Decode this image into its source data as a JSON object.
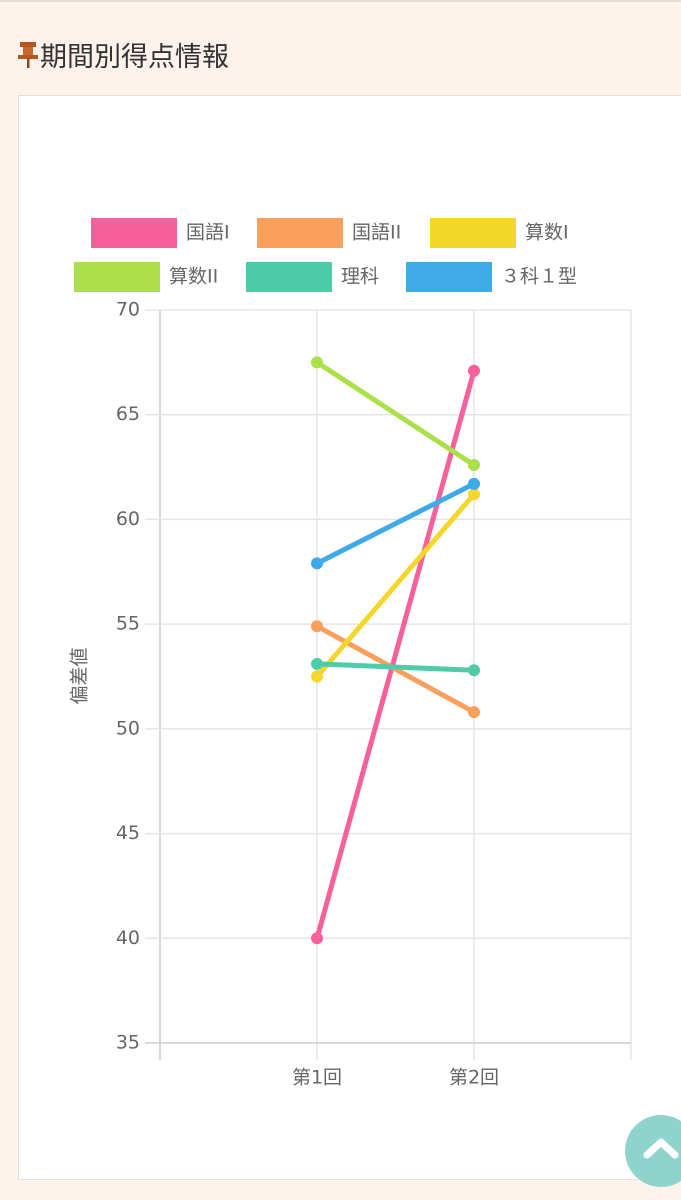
{
  "header": {
    "title": "期間別得点情報"
  },
  "chart_data": {
    "type": "line",
    "y_label": "偏差値",
    "categories": [
      null,
      "第1回",
      "第2回",
      null
    ],
    "series": [
      {
        "name": "国語I",
        "color": "#f7609b",
        "values": [
          null,
          40,
          67.1,
          null
        ]
      },
      {
        "name": "国語II",
        "color": "#fb9f5c",
        "values": [
          null,
          54.9,
          50.8,
          null
        ]
      },
      {
        "name": "算数I",
        "color": "#f5d62a",
        "values": [
          null,
          52.5,
          61.2,
          null
        ]
      },
      {
        "name": "算数II",
        "color": "#abe04a",
        "values": [
          null,
          67.5,
          62.6,
          null
        ]
      },
      {
        "name": "理科",
        "color": "#4ecba9",
        "values": [
          null,
          53.1,
          52.8,
          null
        ]
      },
      {
        "name": "３科１型",
        "color": "#3eaae8",
        "values": [
          null,
          57.9,
          61.7,
          null
        ]
      }
    ],
    "ylim": [
      35,
      70
    ],
    "yticks": [
      35,
      40,
      45,
      50,
      55,
      60,
      65,
      70
    ],
    "grid": true
  }
}
